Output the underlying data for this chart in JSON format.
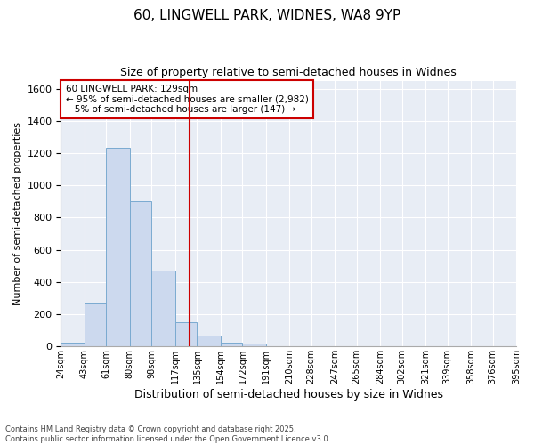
{
  "title_line1": "60, LINGWELL PARK, WIDNES, WA8 9YP",
  "title_line2": "Size of property relative to semi-detached houses in Widnes",
  "xlabel": "Distribution of semi-detached houses by size in Widnes",
  "ylabel": "Number of semi-detached properties",
  "bin_labels": [
    "24sqm",
    "43sqm",
    "61sqm",
    "80sqm",
    "98sqm",
    "117sqm",
    "135sqm",
    "154sqm",
    "172sqm",
    "191sqm",
    "210sqm",
    "228sqm",
    "247sqm",
    "265sqm",
    "284sqm",
    "302sqm",
    "321sqm",
    "339sqm",
    "358sqm",
    "376sqm",
    "395sqm"
  ],
  "bin_edges": [
    24,
    43,
    61,
    80,
    98,
    117,
    135,
    154,
    172,
    191,
    210,
    228,
    247,
    265,
    284,
    302,
    321,
    339,
    358,
    376,
    395
  ],
  "bar_heights": [
    25,
    265,
    1235,
    900,
    470,
    150,
    70,
    25,
    20,
    0,
    0,
    0,
    0,
    0,
    0,
    0,
    0,
    0,
    0,
    0
  ],
  "bar_color": "#ccd9ee",
  "bar_edge_color": "#7aaad0",
  "property_value": 129,
  "vline_color": "#cc0000",
  "annotation_text": "60 LINGWELL PARK: 129sqm\n← 95% of semi-detached houses are smaller (2,982)\n   5% of semi-detached houses are larger (147) →",
  "annotation_box_facecolor": "#ffffff",
  "annotation_box_edgecolor": "#cc0000",
  "ylim": [
    0,
    1650
  ],
  "yticks": [
    0,
    200,
    400,
    600,
    800,
    1000,
    1200,
    1400,
    1600
  ],
  "plot_bg_color": "#e8edf5",
  "fig_bg_color": "#ffffff",
  "grid_color": "#ffffff",
  "footer_line1": "Contains HM Land Registry data © Crown copyright and database right 2025.",
  "footer_line2": "Contains public sector information licensed under the Open Government Licence v3.0."
}
